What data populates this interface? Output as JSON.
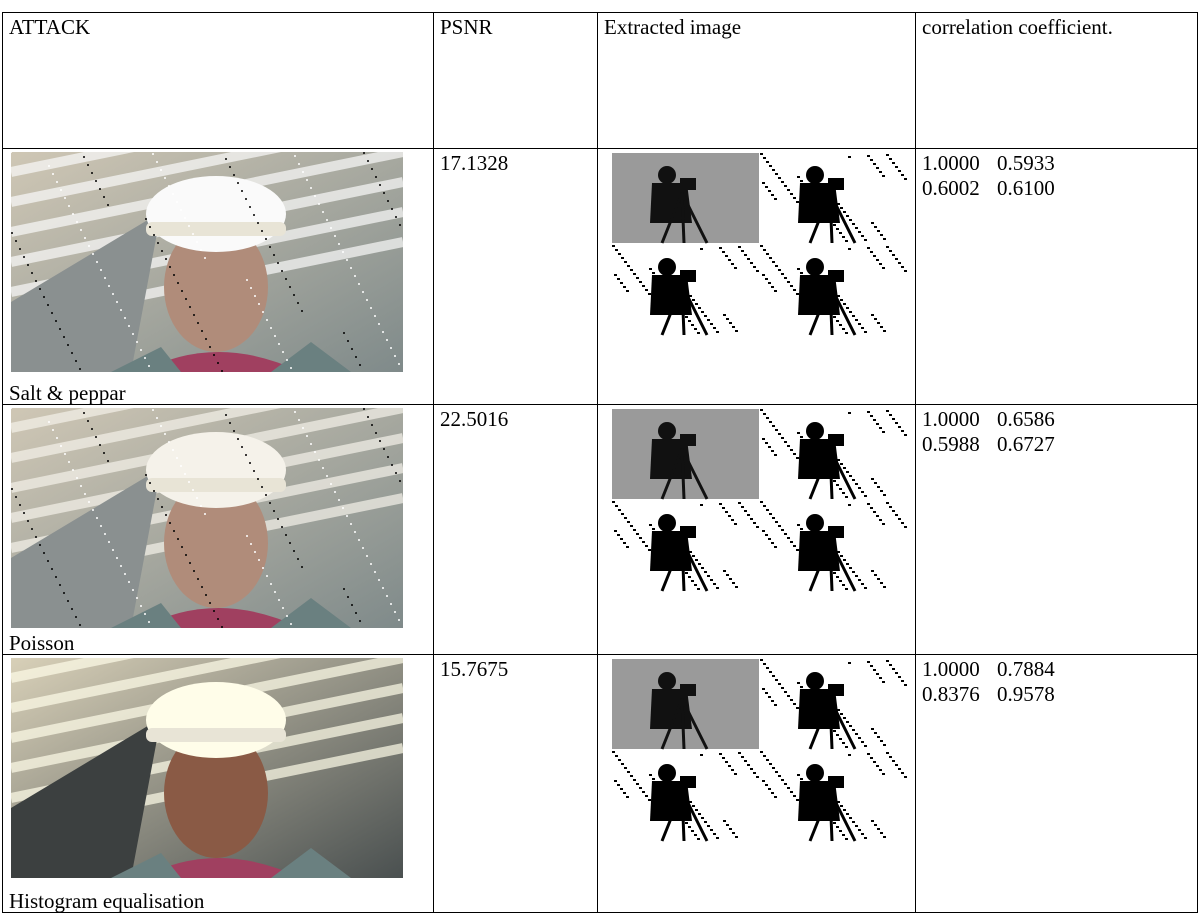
{
  "table": {
    "header": [
      "ATTACK",
      "PSNR",
      "Extracted image",
      "correlation coefficient."
    ],
    "rows": [
      {
        "attack": "Salt & peppar",
        "psnr": "17.1328",
        "correlation": [
          [
            "1.0000",
            "0.5933"
          ],
          [
            "0.6002",
            "0.6100"
          ]
        ]
      },
      {
        "attack": "Poisson",
        "psnr": "22.5016",
        "correlation": [
          [
            "1.0000",
            "0.6586"
          ],
          [
            "0.5988",
            "0.6727"
          ]
        ]
      },
      {
        "attack": "Histogram equalisation",
        "psnr": "15.7675",
        "correlation": [
          [
            "1.0000",
            "0.7884"
          ],
          [
            "0.8376",
            "0.9578"
          ]
        ]
      }
    ]
  }
}
